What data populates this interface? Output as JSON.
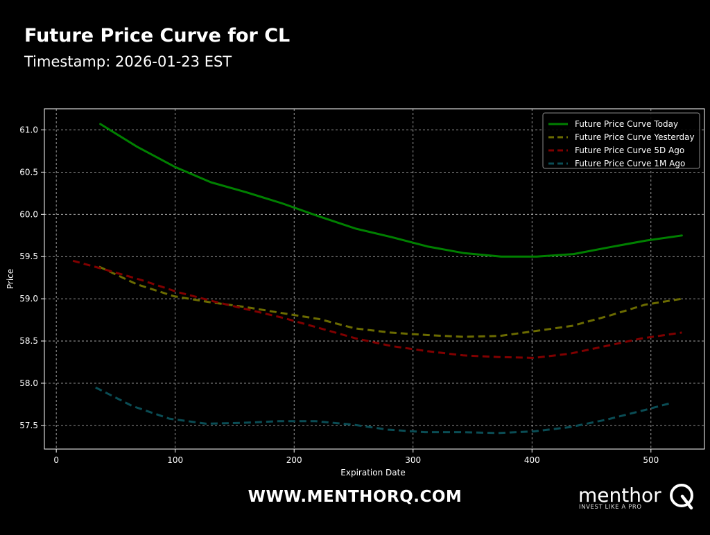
{
  "header": {
    "title": "Future Price Curve for CL",
    "subtitle": "Timestamp: 2026-01-23 EST"
  },
  "footer": {
    "url": "WWW.MENTHORQ.COM",
    "logo_word": "menthor",
    "logo_tagline": "INVEST LIKE A PRO"
  },
  "chart_data": {
    "type": "line",
    "xlabel": "Expiration Date",
    "ylabel": "Price",
    "xlim": [
      -10,
      545
    ],
    "ylim": [
      57.22,
      61.25
    ],
    "xticks": [
      0,
      100,
      200,
      300,
      400,
      500
    ],
    "yticks": [
      57.5,
      58.0,
      58.5,
      59.0,
      59.5,
      60.0,
      60.5,
      61.0
    ],
    "grid": true,
    "legend_position": "top-right",
    "series": [
      {
        "name": "Future Price Curve Today",
        "color": "#008000",
        "dash": "solid",
        "x": [
          37,
          68,
          100,
          130,
          160,
          190,
          220,
          252,
          282,
          312,
          343,
          374,
          404,
          435,
          465,
          496,
          526
        ],
        "y": [
          61.07,
          60.8,
          60.56,
          60.38,
          60.26,
          60.13,
          59.98,
          59.83,
          59.73,
          59.62,
          59.54,
          59.5,
          59.5,
          59.53,
          59.61,
          59.69,
          59.75
        ]
      },
      {
        "name": "Future Price Curve Yesterday",
        "color": "#6b6b00",
        "dash": "dashed",
        "x": [
          36,
          68,
          99,
          129,
          160,
          190,
          221,
          251,
          281,
          312,
          342,
          373,
          404,
          434,
          465,
          495,
          526
        ],
        "y": [
          59.38,
          59.17,
          59.03,
          58.96,
          58.9,
          58.83,
          58.76,
          58.65,
          58.6,
          58.57,
          58.55,
          58.56,
          58.62,
          58.68,
          58.8,
          58.93,
          59.0
        ]
      },
      {
        "name": "Future Price Curve 5D Ago",
        "color": "#800000",
        "dash": "dashed",
        "x": [
          14,
          40,
          72,
          102,
          132,
          162,
          192,
          222,
          252,
          282,
          312,
          342,
          372,
          402,
          432,
          462,
          492,
          526
        ],
        "y": [
          59.45,
          59.35,
          59.22,
          59.08,
          58.97,
          58.87,
          58.77,
          58.65,
          58.53,
          58.44,
          58.38,
          58.33,
          58.31,
          58.3,
          58.35,
          58.44,
          58.53,
          58.6
        ]
      },
      {
        "name": "Future Price Curve 1M Ago",
        "color": "#0a4d55",
        "dash": "dashed",
        "x": [
          33,
          64,
          95,
          126,
          156,
          187,
          218,
          249,
          279,
          310,
          340,
          371,
          402,
          432,
          463,
          494,
          518
        ],
        "y": [
          57.95,
          57.73,
          57.58,
          57.52,
          57.53,
          57.55,
          57.55,
          57.51,
          57.45,
          57.42,
          57.42,
          57.41,
          57.43,
          57.48,
          57.57,
          57.68,
          57.77
        ]
      }
    ]
  }
}
